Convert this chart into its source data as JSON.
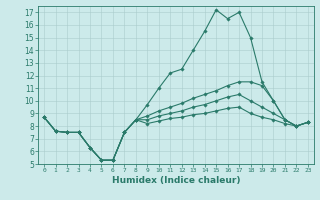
{
  "xlabel": "Humidex (Indice chaleur)",
  "bg_color": "#cceaea",
  "line_color": "#2a7a6a",
  "xlim": [
    -0.5,
    23.5
  ],
  "ylim": [
    5,
    17.5
  ],
  "xticks": [
    0,
    1,
    2,
    3,
    4,
    5,
    6,
    7,
    8,
    9,
    10,
    11,
    12,
    13,
    14,
    15,
    16,
    17,
    18,
    19,
    20,
    21,
    22,
    23
  ],
  "yticks": [
    5,
    6,
    7,
    8,
    9,
    10,
    11,
    12,
    13,
    14,
    15,
    16,
    17
  ],
  "series": [
    {
      "x": [
        0,
        1,
        2,
        3,
        4,
        5,
        6,
        7,
        8,
        9,
        10,
        11,
        12,
        13,
        14,
        15,
        16,
        17,
        18,
        19,
        20,
        21,
        22,
        23
      ],
      "y": [
        8.7,
        7.6,
        7.5,
        7.5,
        6.3,
        5.3,
        5.3,
        7.5,
        8.5,
        9.7,
        11.0,
        12.2,
        12.5,
        14.0,
        15.5,
        17.2,
        16.5,
        17.0,
        15.0,
        11.5,
        10.0,
        8.5,
        8.0,
        8.3
      ]
    },
    {
      "x": [
        0,
        1,
        2,
        3,
        4,
        5,
        6,
        7,
        8,
        9,
        10,
        11,
        12,
        13,
        14,
        15,
        16,
        17,
        18,
        19,
        20,
        21,
        22,
        23
      ],
      "y": [
        8.7,
        7.6,
        7.5,
        7.5,
        6.3,
        5.3,
        5.3,
        7.5,
        8.5,
        8.8,
        9.2,
        9.5,
        9.8,
        10.2,
        10.5,
        10.8,
        11.2,
        11.5,
        11.5,
        11.2,
        10.0,
        8.5,
        8.0,
        8.3
      ]
    },
    {
      "x": [
        0,
        1,
        2,
        3,
        4,
        5,
        6,
        7,
        8,
        9,
        10,
        11,
        12,
        13,
        14,
        15,
        16,
        17,
        18,
        19,
        20,
        21,
        22,
        23
      ],
      "y": [
        8.7,
        7.6,
        7.5,
        7.5,
        6.3,
        5.3,
        5.3,
        7.5,
        8.5,
        8.5,
        8.8,
        9.0,
        9.2,
        9.5,
        9.7,
        10.0,
        10.3,
        10.5,
        10.0,
        9.5,
        9.0,
        8.5,
        8.0,
        8.3
      ]
    },
    {
      "x": [
        0,
        1,
        2,
        3,
        4,
        5,
        6,
        7,
        8,
        9,
        10,
        11,
        12,
        13,
        14,
        15,
        16,
        17,
        18,
        19,
        20,
        21,
        22,
        23
      ],
      "y": [
        8.7,
        7.6,
        7.5,
        7.5,
        6.3,
        5.3,
        5.3,
        7.5,
        8.5,
        8.2,
        8.4,
        8.6,
        8.7,
        8.9,
        9.0,
        9.2,
        9.4,
        9.5,
        9.0,
        8.7,
        8.5,
        8.2,
        8.0,
        8.3
      ]
    }
  ]
}
